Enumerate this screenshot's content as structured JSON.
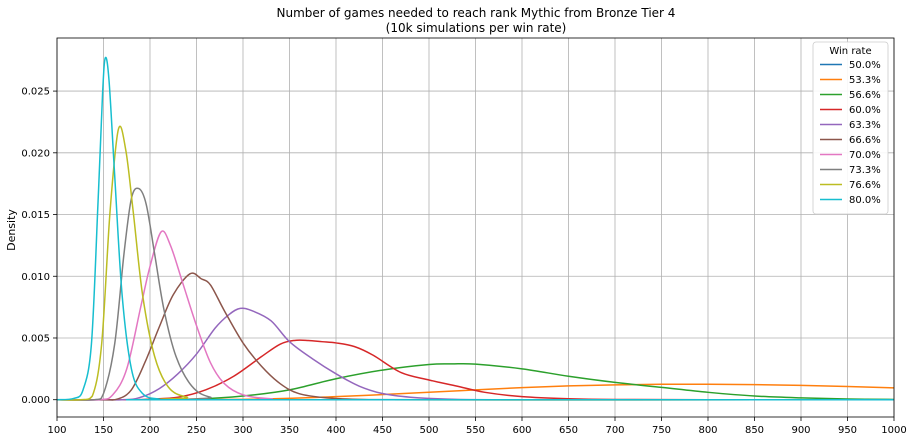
{
  "chart_data": {
    "type": "line",
    "title": "Number of games needed to reach rank Mythic from Bronze Tier 4",
    "subtitle": "(10k simulations per win rate)",
    "xlabel": "",
    "ylabel": "Density",
    "xlim": [
      100,
      1000
    ],
    "ylim": [
      -0.0014,
      0.0293
    ],
    "xticks": [
      "100",
      "150",
      "200",
      "250",
      "300",
      "350",
      "400",
      "450",
      "500",
      "550",
      "600",
      "650",
      "700",
      "750",
      "800",
      "850",
      "900",
      "950",
      "1000"
    ],
    "yticks": [
      "0.000",
      "0.005",
      "0.010",
      "0.015",
      "0.020",
      "0.025"
    ],
    "grid": true,
    "legend": {
      "title": "Win rate",
      "placement": "top-right"
    },
    "series": [
      {
        "name": "50.0%",
        "color": "#1f77b4",
        "points": [
          [
            100,
            0
          ],
          [
            300,
            0
          ],
          [
            500,
            0
          ],
          [
            700,
            0
          ],
          [
            900,
            0
          ],
          [
            1000,
            0
          ]
        ]
      },
      {
        "name": "53.3%",
        "color": "#ff7f0e",
        "points": [
          [
            100,
            0
          ],
          [
            300,
            3e-05
          ],
          [
            400,
            0.00025
          ],
          [
            500,
            0.0006
          ],
          [
            550,
            0.0008
          ],
          [
            600,
            0.00098
          ],
          [
            650,
            0.00112
          ],
          [
            700,
            0.0012
          ],
          [
            750,
            0.00125
          ],
          [
            800,
            0.00125
          ],
          [
            850,
            0.00122
          ],
          [
            900,
            0.00116
          ],
          [
            950,
            0.00107
          ],
          [
            1000,
            0.00096
          ]
        ]
      },
      {
        "name": "56.6%",
        "color": "#2ca02c",
        "points": [
          [
            100,
            0
          ],
          [
            200,
            0
          ],
          [
            250,
            5e-05
          ],
          [
            300,
            0.0003
          ],
          [
            350,
            0.0008
          ],
          [
            400,
            0.0017
          ],
          [
            450,
            0.0024
          ],
          [
            500,
            0.00285
          ],
          [
            525,
            0.0029
          ],
          [
            550,
            0.00288
          ],
          [
            600,
            0.0025
          ],
          [
            650,
            0.0019
          ],
          [
            700,
            0.0014
          ],
          [
            750,
            0.001
          ],
          [
            800,
            0.0006
          ],
          [
            850,
            0.0003
          ],
          [
            900,
            0.00015
          ],
          [
            950,
            6e-05
          ],
          [
            1000,
            2e-05
          ]
        ]
      },
      {
        "name": "60.0%",
        "color": "#d62728",
        "points": [
          [
            100,
            0
          ],
          [
            180,
            0
          ],
          [
            200,
            5e-05
          ],
          [
            230,
            0.0002
          ],
          [
            260,
            0.0008
          ],
          [
            290,
            0.0019
          ],
          [
            320,
            0.0035
          ],
          [
            340,
            0.0045
          ],
          [
            355,
            0.0048
          ],
          [
            370,
            0.0048
          ],
          [
            385,
            0.0047
          ],
          [
            400,
            0.0046
          ],
          [
            420,
            0.0043
          ],
          [
            440,
            0.0036
          ],
          [
            470,
            0.0022
          ],
          [
            500,
            0.0016
          ],
          [
            530,
            0.0011
          ],
          [
            560,
            0.0006
          ],
          [
            600,
            0.00025
          ],
          [
            650,
            8e-05
          ],
          [
            700,
            2e-05
          ],
          [
            800,
            0
          ],
          [
            1000,
            0
          ]
        ]
      },
      {
        "name": "63.3%",
        "color": "#9467bd",
        "points": [
          [
            100,
            0
          ],
          [
            170,
            0
          ],
          [
            190,
            0.0002
          ],
          [
            210,
            0.0009
          ],
          [
            230,
            0.0021
          ],
          [
            250,
            0.0037
          ],
          [
            270,
            0.0058
          ],
          [
            285,
            0.0069
          ],
          [
            297,
            0.0074
          ],
          [
            310,
            0.0072
          ],
          [
            330,
            0.0064
          ],
          [
            350,
            0.0047
          ],
          [
            375,
            0.0033
          ],
          [
            400,
            0.0021
          ],
          [
            425,
            0.0011
          ],
          [
            450,
            0.0005
          ],
          [
            480,
            0.0002
          ],
          [
            520,
            5e-05
          ],
          [
            600,
            0
          ],
          [
            1000,
            0
          ]
        ]
      },
      {
        "name": "66.6%",
        "color": "#8c564b",
        "points": [
          [
            100,
            0
          ],
          [
            150,
            0
          ],
          [
            165,
            5e-05
          ],
          [
            180,
            0.0008
          ],
          [
            195,
            0.0031
          ],
          [
            210,
            0.0059
          ],
          [
            225,
            0.0085
          ],
          [
            243,
            0.0102
          ],
          [
            255,
            0.0098
          ],
          [
            265,
            0.0093
          ],
          [
            280,
            0.0072
          ],
          [
            300,
            0.0046
          ],
          [
            320,
            0.0027
          ],
          [
            340,
            0.0013
          ],
          [
            360,
            0.0005
          ],
          [
            390,
            0.00015
          ],
          [
            430,
            2e-05
          ],
          [
            500,
            0
          ],
          [
            1000,
            0
          ]
        ]
      },
      {
        "name": "70.0%",
        "color": "#e377c2",
        "points": [
          [
            100,
            0
          ],
          [
            145,
            0
          ],
          [
            160,
            0.0004
          ],
          [
            175,
            0.0025
          ],
          [
            190,
            0.0075
          ],
          [
            200,
            0.0108
          ],
          [
            212,
            0.0136
          ],
          [
            222,
            0.0125
          ],
          [
            235,
            0.0095
          ],
          [
            250,
            0.006
          ],
          [
            265,
            0.003
          ],
          [
            280,
            0.0013
          ],
          [
            300,
            0.0004
          ],
          [
            330,
            8e-05
          ],
          [
            380,
            0
          ],
          [
            1000,
            0
          ]
        ]
      },
      {
        "name": "73.3%",
        "color": "#7f7f7f",
        "points": [
          [
            100,
            0
          ],
          [
            140,
            0
          ],
          [
            150,
            0.0005
          ],
          [
            162,
            0.0045
          ],
          [
            172,
            0.0118
          ],
          [
            180,
            0.0163
          ],
          [
            188,
            0.0171
          ],
          [
            196,
            0.0158
          ],
          [
            205,
            0.0118
          ],
          [
            215,
            0.0073
          ],
          [
            228,
            0.0035
          ],
          [
            245,
            0.0011
          ],
          [
            265,
            0.0002
          ],
          [
            300,
            0
          ],
          [
            1000,
            0
          ]
        ]
      },
      {
        "name": "76.6%",
        "color": "#bcbd22",
        "points": [
          [
            100,
            0
          ],
          [
            125,
            0
          ],
          [
            138,
            0.0003
          ],
          [
            148,
            0.0045
          ],
          [
            157,
            0.0152
          ],
          [
            166,
            0.0219
          ],
          [
            174,
            0.0202
          ],
          [
            182,
            0.0152
          ],
          [
            192,
            0.0085
          ],
          [
            205,
            0.0035
          ],
          [
            220,
            0.001
          ],
          [
            240,
            0.0002
          ],
          [
            270,
            0
          ],
          [
            1000,
            0
          ]
        ]
      },
      {
        "name": "80.0%",
        "color": "#17becf",
        "points": [
          [
            100,
            0
          ],
          [
            118,
            0.0001
          ],
          [
            128,
            0.0008
          ],
          [
            137,
            0.0045
          ],
          [
            144,
            0.0158
          ],
          [
            149,
            0.0248
          ],
          [
            152,
            0.0277
          ],
          [
            156,
            0.0258
          ],
          [
            162,
            0.0182
          ],
          [
            170,
            0.0085
          ],
          [
            180,
            0.0025
          ],
          [
            192,
            0.0005
          ],
          [
            210,
            5e-05
          ],
          [
            240,
            0
          ],
          [
            1000,
            0
          ]
        ]
      }
    ]
  }
}
